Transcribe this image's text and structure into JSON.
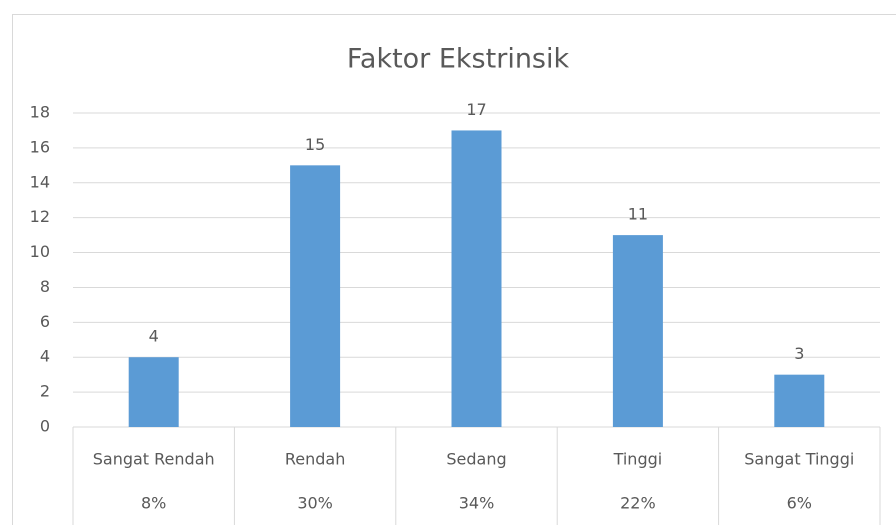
{
  "chart_data": {
    "type": "bar",
    "title": "Faktor Ekstrinsik",
    "categories": [
      "Sangat Rendah",
      "Rendah",
      "Sedang",
      "Tinggi",
      "Sangat Tinggi"
    ],
    "values": [
      4,
      15,
      17,
      11,
      3
    ],
    "shares": [
      "8%",
      "30%",
      "34%",
      "22%",
      "6%"
    ],
    "color": "#5b9bd5",
    "ylim": [
      0,
      18
    ],
    "yticks": [
      0,
      2,
      4,
      6,
      8,
      10,
      12,
      14,
      16,
      18
    ],
    "grid": true
  }
}
